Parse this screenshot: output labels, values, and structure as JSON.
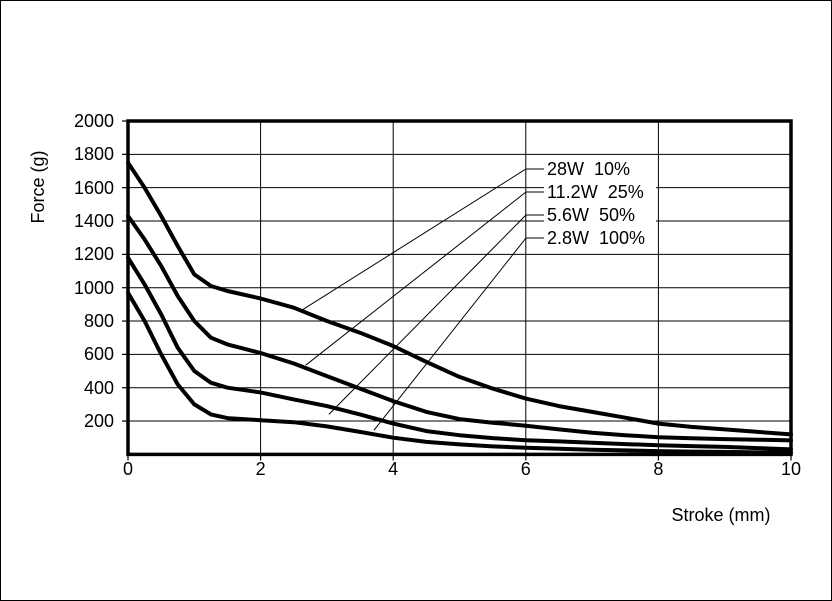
{
  "page": {
    "background": "#ffffff",
    "border_color": "#000000",
    "ink_color": "#000000"
  },
  "chart_data": {
    "type": "line",
    "xlabel": "Stroke (mm)",
    "ylabel": "Force (g)",
    "xlim": [
      0,
      10
    ],
    "ylim": [
      0,
      2000
    ],
    "x_ticks": [
      0,
      2,
      4,
      6,
      8,
      10
    ],
    "y_ticks": [
      200,
      400,
      600,
      800,
      1000,
      1200,
      1400,
      1600,
      1800,
      2000
    ],
    "grid": true,
    "line_color": "#000000",
    "legend": {
      "position": "inside-top-right",
      "entries": [
        {
          "label": "28W  10%",
          "callout_x": 2.64,
          "callout_y": 870
        },
        {
          "label": "11.2W  25%",
          "callout_x": 2.68,
          "callout_y": 535
        },
        {
          "label": "5.6W  50%",
          "callout_x": 3.03,
          "callout_y": 240
        },
        {
          "label": "2.8W  100%",
          "callout_x": 3.71,
          "callout_y": 145
        }
      ]
    },
    "series": [
      {
        "name": "28W  10%",
        "x": [
          0,
          0.25,
          0.5,
          0.75,
          1,
          1.25,
          1.5,
          2,
          2.5,
          3,
          3.5,
          4,
          4.5,
          5,
          5.5,
          6,
          6.5,
          7,
          7.5,
          8,
          8.5,
          9,
          9.5,
          10
        ],
        "y": [
          1750,
          1600,
          1430,
          1250,
          1080,
          1010,
          980,
          935,
          880,
          800,
          730,
          650,
          555,
          465,
          395,
          335,
          290,
          255,
          220,
          185,
          165,
          150,
          135,
          120
        ]
      },
      {
        "name": "11.2W  25%",
        "x": [
          0,
          0.25,
          0.5,
          0.75,
          1,
          1.25,
          1.5,
          2,
          2.5,
          3,
          3.5,
          4,
          4.5,
          5,
          5.5,
          6,
          6.5,
          7,
          7.5,
          8,
          8.5,
          9,
          9.5,
          10
        ],
        "y": [
          1430,
          1290,
          1130,
          950,
          800,
          700,
          660,
          608,
          545,
          470,
          395,
          320,
          255,
          212,
          190,
          172,
          150,
          130,
          115,
          103,
          97,
          92,
          88,
          84
        ]
      },
      {
        "name": "5.6W  50%",
        "x": [
          0,
          0.25,
          0.5,
          0.75,
          1,
          1.25,
          1.5,
          2,
          2.5,
          3,
          3.5,
          4,
          4.5,
          5,
          5.5,
          6,
          6.5,
          7,
          7.5,
          8,
          8.5,
          9,
          9.5,
          10
        ],
        "y": [
          1180,
          1020,
          840,
          640,
          500,
          430,
          400,
          372,
          330,
          290,
          240,
          185,
          140,
          115,
          98,
          85,
          78,
          70,
          62,
          55,
          50,
          45,
          38,
          30
        ]
      },
      {
        "name": "2.8W  100%",
        "x": [
          0,
          0.25,
          0.5,
          0.75,
          1,
          1.25,
          1.5,
          2,
          2.5,
          3,
          3.5,
          4,
          4.5,
          5,
          5.5,
          6,
          6.5,
          7,
          7.5,
          8,
          8.5,
          9,
          9.5,
          10
        ],
        "y": [
          970,
          800,
          600,
          420,
          300,
          240,
          218,
          205,
          193,
          168,
          135,
          100,
          75,
          60,
          48,
          40,
          34,
          28,
          24,
          20,
          17,
          15,
          12,
          10
        ]
      }
    ]
  }
}
